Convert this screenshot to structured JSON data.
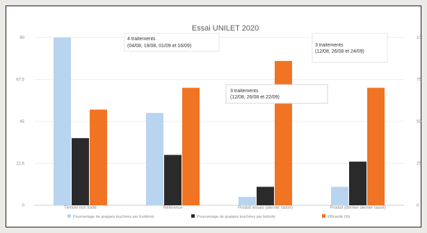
{
  "chart_data": {
    "type": "bar",
    "title": "Essai UNILET 2020",
    "categories": [
      "Témoin non traité",
      "Référence",
      "Produit essais (dernier rasoir)",
      "Produit (dernier dernier rasoir)"
    ],
    "series": [
      {
        "name": "Pourcentage de grappes touchées par Eudémis",
        "color": "#b8d4ef",
        "values": [
          100,
          55,
          5,
          11
        ]
      },
      {
        "name": "Pourcentage de grappes touchées par botrytis",
        "color": "#2a2a2a",
        "values": [
          40,
          30,
          11,
          26
        ]
      },
      {
        "name": "Efficacité (%)",
        "color": "#f07423",
        "values": [
          57,
          70,
          86,
          70
        ]
      }
    ],
    "left_axis": {
      "ticks": [
        "0",
        "22,5",
        "45",
        "67,5",
        "90"
      ]
    },
    "right_axis": {
      "ticks": [
        "0",
        "25",
        "50",
        "75",
        "100"
      ]
    },
    "ylim": [
      0,
      100
    ],
    "annotations": [
      {
        "lines": [
          "4 traitements",
          "(04/08, 19/08, 01/09 et 16/09)"
        ]
      },
      {
        "lines": [
          "3 traitements",
          "(12/08, 26/08 et 22/09)"
        ]
      },
      {
        "lines": [
          "3 traitements",
          "(12/08, 26/08 et 24/09)"
        ]
      }
    ],
    "grid": true,
    "legend_position": "bottom"
  }
}
